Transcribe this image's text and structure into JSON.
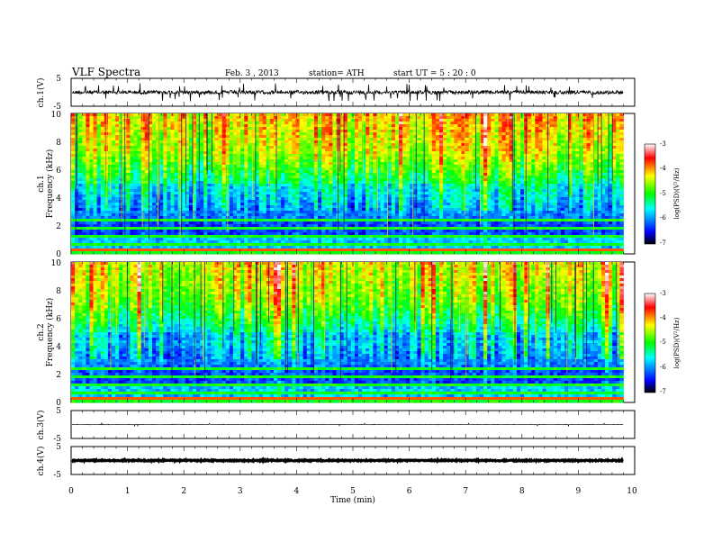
{
  "header": {
    "title": "VLF  Spectra",
    "date": "Feb. 3  , 2013",
    "station": "station= ATH",
    "start": "start  UT  =   5  : 20 : 0"
  },
  "chart_data": [
    {
      "type": "line",
      "name": "ch.1 waveform",
      "ylabel": "ch.1(V)",
      "ylim": [
        -5,
        5
      ],
      "yticks": [
        "5",
        "-5"
      ],
      "xlim": [
        0,
        10
      ],
      "baseline": 0
    },
    {
      "type": "heatmap",
      "name": "ch.1 spectrogram",
      "ylabel_top": "ch.1",
      "ylabel": "Frequency  (kHz)",
      "ylim": [
        0,
        10
      ],
      "yticks": [
        "0",
        "2",
        "4",
        "6",
        "8",
        "10"
      ],
      "xlim": [
        0,
        10
      ],
      "data_end_min": 9.8,
      "colorbar": {
        "label": "log(PSD)(V²/Hz)",
        "range": [
          -7,
          -3
        ],
        "ticks": [
          "-3",
          "-4",
          "-5",
          "-6",
          "-7"
        ]
      }
    },
    {
      "type": "heatmap",
      "name": "ch.2 spectrogram",
      "ylabel_top": "ch.2",
      "ylabel": "Frequency  (kHz)",
      "ylim": [
        0,
        10
      ],
      "yticks": [
        "0",
        "2",
        "4",
        "6",
        "8",
        "10"
      ],
      "xlim": [
        0,
        10
      ],
      "data_end_min": 9.8,
      "colorbar": {
        "label": "log(PSD)(V²/Hz)",
        "range": [
          -7,
          -3
        ],
        "ticks": [
          "-3",
          "-4",
          "-5",
          "-6",
          "-7"
        ]
      }
    },
    {
      "type": "line",
      "name": "ch.3 waveform",
      "ylabel": "ch.3(V)",
      "ylim": [
        -5,
        5
      ],
      "yticks": [
        "5",
        "-5"
      ],
      "xlim": [
        0,
        10
      ],
      "baseline": 0
    },
    {
      "type": "line",
      "name": "ch.4 waveform",
      "ylabel": "ch.4(V)",
      "ylim": [
        -5,
        5
      ],
      "yticks": [
        "5",
        "-5"
      ],
      "xlim": [
        0,
        10
      ],
      "baseline": 0
    }
  ],
  "xaxis": {
    "label": "Time  (min)",
    "ticks": [
      "0",
      "1",
      "2",
      "3",
      "4",
      "5",
      "6",
      "7",
      "8",
      "9",
      "10"
    ]
  },
  "colors": {
    "colormap": [
      "#000000",
      "#0000ff",
      "#00ffff",
      "#00ff00",
      "#ffff00",
      "#ff0000",
      "#ffffff"
    ]
  }
}
